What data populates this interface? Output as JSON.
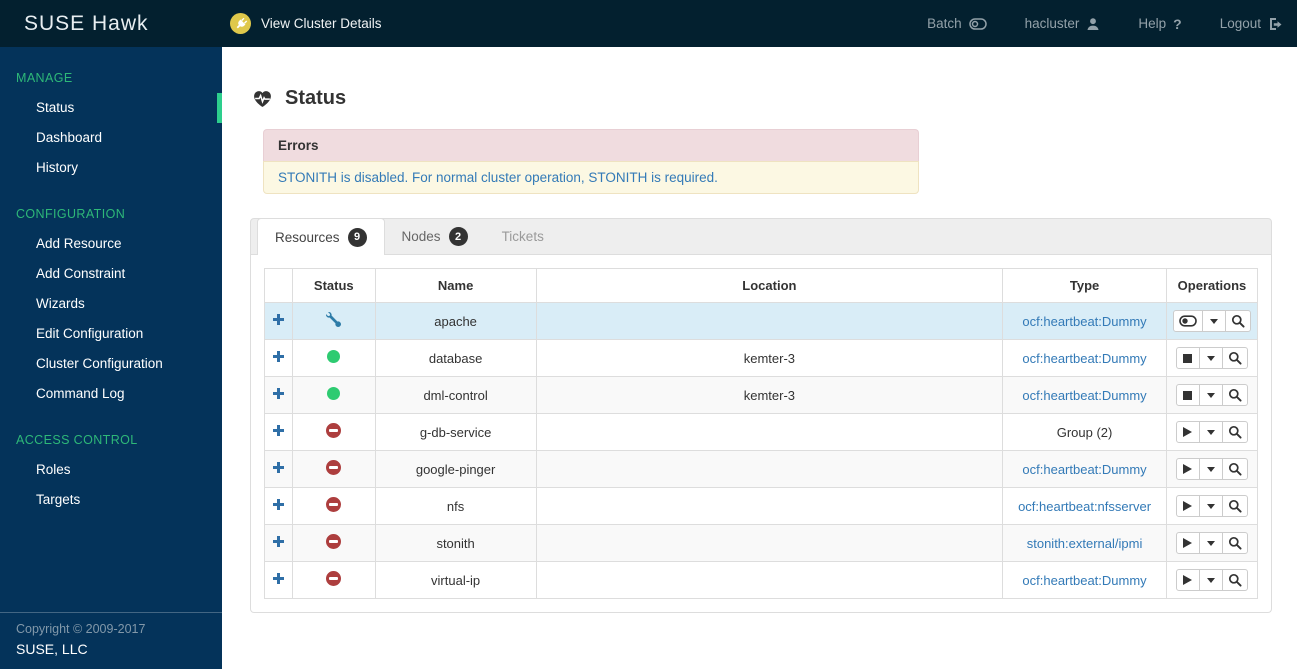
{
  "topbar": {
    "logo": "SUSE Hawk",
    "cluster_link": "View Cluster Details",
    "menu": {
      "batch": "Batch",
      "user": "hacluster",
      "help": "Help",
      "logout": "Logout"
    }
  },
  "sidebar": {
    "sections": [
      {
        "title": "MANAGE",
        "items": [
          {
            "label": "Status",
            "active": true
          },
          {
            "label": "Dashboard",
            "active": false
          },
          {
            "label": "History",
            "active": false
          }
        ]
      },
      {
        "title": "CONFIGURATION",
        "items": [
          {
            "label": "Add Resource",
            "active": false
          },
          {
            "label": "Add Constraint",
            "active": false
          },
          {
            "label": "Wizards",
            "active": false
          },
          {
            "label": "Edit Configuration",
            "active": false
          },
          {
            "label": "Cluster Configuration",
            "active": false
          },
          {
            "label": "Command Log",
            "active": false
          }
        ]
      },
      {
        "title": "ACCESS CONTROL",
        "items": [
          {
            "label": "Roles",
            "active": false
          },
          {
            "label": "Targets",
            "active": false
          }
        ]
      }
    ],
    "footer": {
      "line1": "Copyright © 2009-2017",
      "line2": "SUSE, LLC"
    }
  },
  "main": {
    "title": "Status",
    "errors": {
      "header": "Errors",
      "message": "STONITH is disabled. For normal cluster operation, STONITH is required."
    },
    "tabs": [
      {
        "label": "Resources",
        "badge": "9",
        "state": "active"
      },
      {
        "label": "Nodes",
        "badge": "2",
        "state": "inactive"
      },
      {
        "label": "Tickets",
        "badge": "",
        "state": "disabled"
      }
    ],
    "table": {
      "headers": [
        "Status",
        "Name",
        "Location",
        "Type",
        "Operations"
      ],
      "rows": [
        {
          "name": "apache",
          "status": "unmanaged",
          "location": "",
          "type": "ocf:heartbeat:Dummy",
          "type_link": true,
          "primary_op": "manage",
          "highlighted": true
        },
        {
          "name": "database",
          "status": "running",
          "location": "kemter-3",
          "type": "ocf:heartbeat:Dummy",
          "type_link": true,
          "primary_op": "stop",
          "highlighted": false
        },
        {
          "name": "dml-control",
          "status": "running",
          "location": "kemter-3",
          "type": "ocf:heartbeat:Dummy",
          "type_link": true,
          "primary_op": "stop",
          "highlighted": false
        },
        {
          "name": "g-db-service",
          "status": "stopped",
          "location": "",
          "type": "Group (2)",
          "type_link": false,
          "primary_op": "start",
          "highlighted": false
        },
        {
          "name": "google-pinger",
          "status": "stopped",
          "location": "",
          "type": "ocf:heartbeat:Dummy",
          "type_link": true,
          "primary_op": "start",
          "highlighted": false
        },
        {
          "name": "nfs",
          "status": "stopped",
          "location": "",
          "type": "ocf:heartbeat:nfsserver",
          "type_link": true,
          "primary_op": "start",
          "highlighted": false
        },
        {
          "name": "stonith",
          "status": "stopped",
          "location": "",
          "type": "stonith:external/ipmi",
          "type_link": true,
          "primary_op": "start",
          "highlighted": false
        },
        {
          "name": "virtual-ip",
          "status": "stopped",
          "location": "",
          "type": "ocf:heartbeat:Dummy",
          "type_link": true,
          "primary_op": "start",
          "highlighted": false
        }
      ]
    }
  },
  "colors": {
    "topbar_bg": "#03202f",
    "sidebar_bg": "#04335a",
    "accent_green": "#2eb878",
    "active_indicator": "#2dce8d",
    "link_blue": "#337ab7",
    "row_highlight": "#d9edf7",
    "running_green": "#2ecb71",
    "stopped_red": "#ad3e3e",
    "error_header_bg": "#f0dcdf",
    "error_body_bg": "#fcf8e3",
    "plug_badge_yellow": "#dfc84b"
  }
}
